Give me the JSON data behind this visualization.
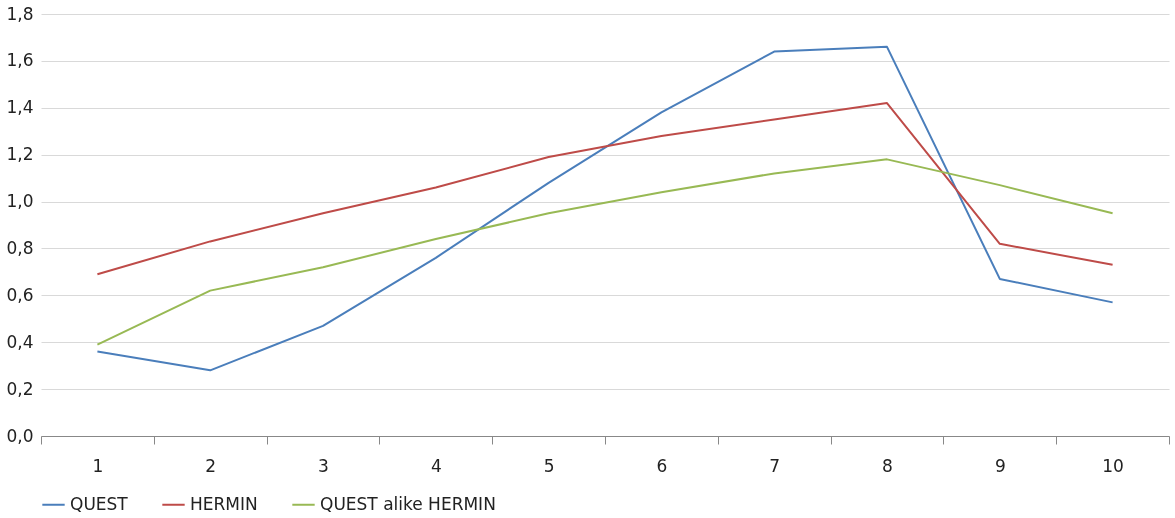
{
  "chart_data": {
    "type": "line",
    "categories": [
      "1",
      "2",
      "3",
      "4",
      "5",
      "6",
      "7",
      "8",
      "9",
      "10"
    ],
    "series": [
      {
        "name": "QUEST",
        "color": "#4a7ebb",
        "values": [
          0.36,
          0.28,
          0.47,
          0.76,
          1.08,
          1.38,
          1.64,
          1.66,
          0.67,
          0.57
        ]
      },
      {
        "name": "HERMIN",
        "color": "#be4b48",
        "values": [
          0.69,
          0.83,
          0.95,
          1.06,
          1.19,
          1.28,
          1.35,
          1.42,
          0.82,
          0.73
        ]
      },
      {
        "name": "QUEST alike HERMIN",
        "color": "#98b954",
        "values": [
          0.39,
          0.62,
          0.72,
          0.84,
          0.95,
          1.04,
          1.12,
          1.18,
          1.07,
          0.95
        ]
      }
    ],
    "ylim": [
      0,
      1.8
    ],
    "yticks": [
      {
        "value": 0,
        "label": "0,0"
      },
      {
        "value": 0.2,
        "label": "0,2"
      },
      {
        "value": 0.4,
        "label": "0,4"
      },
      {
        "value": 0.6,
        "label": "0,6"
      },
      {
        "value": 0.8,
        "label": "0,8"
      },
      {
        "value": 1.0,
        "label": "1,0"
      },
      {
        "value": 1.2,
        "label": "1,2"
      },
      {
        "value": 1.4,
        "label": "1,4"
      },
      {
        "value": 1.6,
        "label": "1,6"
      },
      {
        "value": 1.8,
        "label": "1,8"
      }
    ],
    "grid": "y",
    "legend": "bottom",
    "marker": "none",
    "line_style": "solid"
  }
}
